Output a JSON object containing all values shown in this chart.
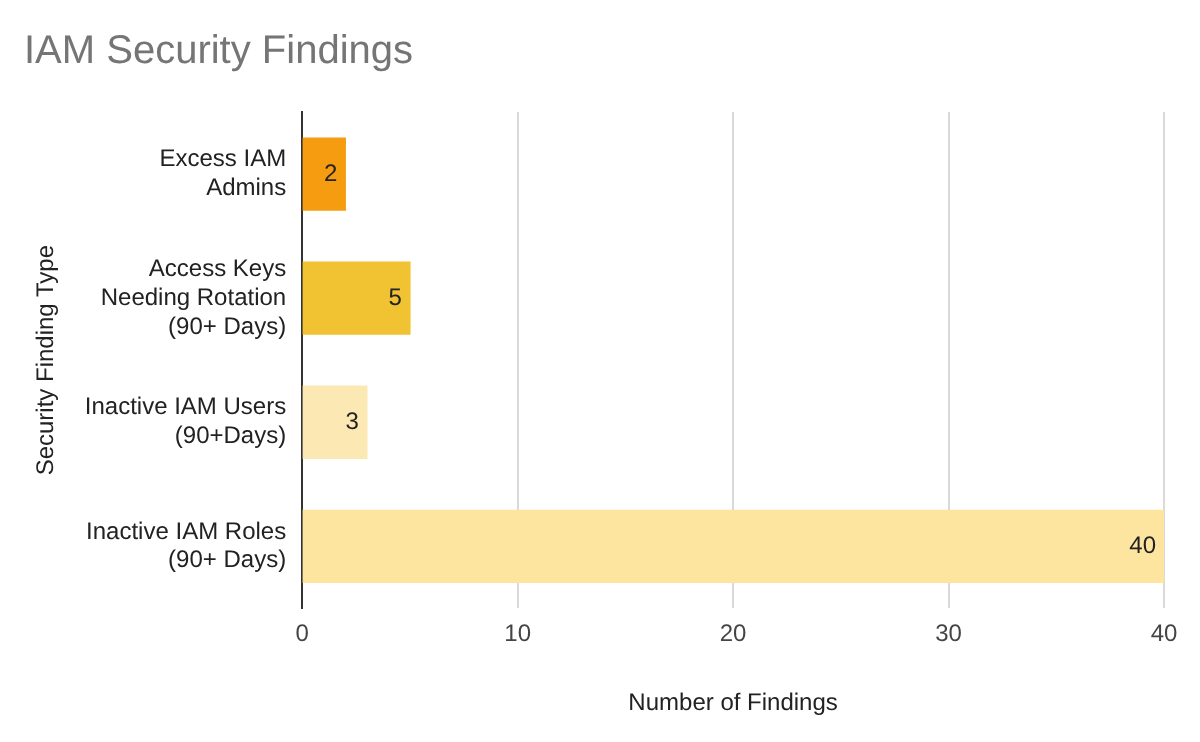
{
  "chart_data": {
    "type": "bar",
    "orientation": "horizontal",
    "title": "IAM Security Findings",
    "xlabel": "Number of Findings",
    "ylabel": "Security Finding Type",
    "categories": [
      "Excess IAM\nAdmins",
      "Access Keys\nNeeding Rotation\n(90+ Days)",
      "Inactive IAM Users\n(90+Days)",
      "Inactive IAM Roles\n(90+ Days)"
    ],
    "values": [
      2,
      5,
      3,
      40
    ],
    "colors": [
      "#f59c10",
      "#f1c232",
      "#fce8b2",
      "#fde59f"
    ],
    "xlim": [
      0,
      40
    ],
    "xticks": [
      0,
      10,
      20,
      30,
      40
    ],
    "grid": "x",
    "legend": false,
    "data_labels": true
  }
}
